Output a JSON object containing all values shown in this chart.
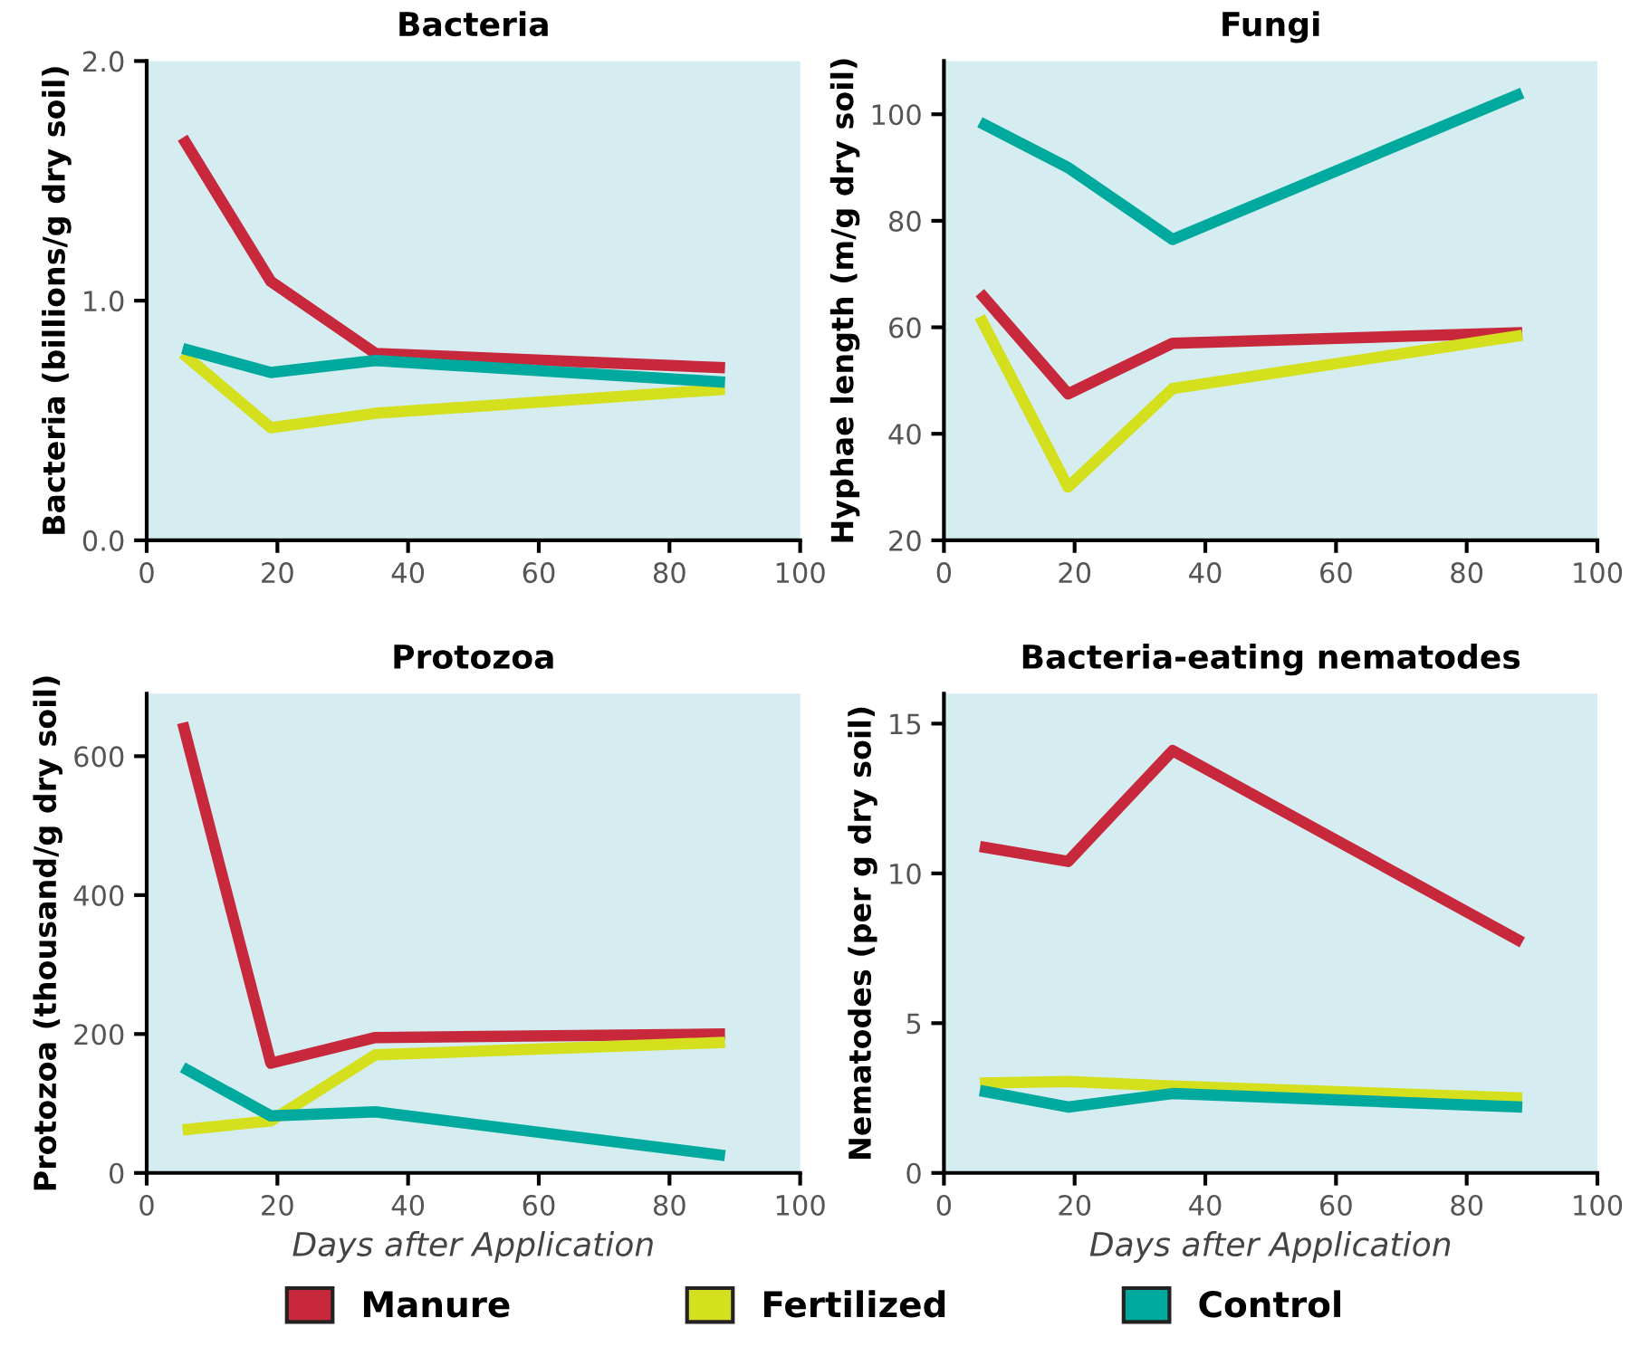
{
  "chart_data": [
    {
      "type": "line",
      "title": "Bacteria",
      "ylabel": "Bacteria (billions/g dry soil)",
      "x": [
        5.5,
        19,
        35,
        88.5
      ],
      "xlim": [
        0,
        100
      ],
      "xticks": [
        0,
        20,
        40,
        60,
        80,
        100
      ],
      "ylim": [
        0,
        2.0
      ],
      "yticks": [
        {
          "value": 0,
          "label": "0.0"
        },
        {
          "value": 1,
          "label": "1.0"
        },
        {
          "value": 2,
          "label": "2.0"
        }
      ],
      "grid": false,
      "marker": "none",
      "line_style": "solid",
      "legend": "bottom",
      "series": [
        {
          "name": "Manure",
          "color": "#c8283c",
          "values": [
            1.68,
            1.08,
            0.78,
            0.72
          ]
        },
        {
          "name": "Fertilized",
          "color": "#d4df1e",
          "values": [
            0.78,
            0.47,
            0.53,
            0.63
          ]
        },
        {
          "name": "Control",
          "color": "#00a99d",
          "values": [
            0.8,
            0.7,
            0.75,
            0.66
          ]
        }
      ]
    },
    {
      "type": "line",
      "title": "Fungi",
      "ylabel": "Hyphae length (m/g dry soil)",
      "x": [
        5.5,
        19,
        35,
        88.5
      ],
      "xlim": [
        0,
        100
      ],
      "xticks": [
        0,
        20,
        40,
        60,
        80,
        100
      ],
      "ylim": [
        20,
        110
      ],
      "yticks": [
        20,
        40,
        60,
        80,
        100
      ],
      "grid": false,
      "marker": "none",
      "line_style": "solid",
      "series": [
        {
          "color": "#c8283c",
          "values": [
            66.5,
            47.5,
            57,
            59
          ]
        },
        {
          "color": "#d4df1e",
          "values": [
            62,
            30,
            48.5,
            58.5
          ]
        },
        {
          "color": "#00a99d",
          "values": [
            98.5,
            90,
            76.5,
            104
          ]
        }
      ]
    },
    {
      "type": "line",
      "title": "Protozoa",
      "ylabel": "Protozoa (thousand/g dry soil)",
      "xlabel": "Days after Application",
      "x": [
        5.5,
        19,
        35,
        88.5
      ],
      "xlim": [
        0,
        100
      ],
      "xticks": [
        0,
        20,
        40,
        60,
        80,
        100
      ],
      "ylim": [
        0,
        690
      ],
      "yticks": [
        0,
        200,
        400,
        600
      ],
      "grid": false,
      "marker": "none",
      "line_style": "solid",
      "series": [
        {
          "color": "#c8283c",
          "values": [
            648,
            158,
            195,
            200
          ]
        },
        {
          "color": "#d4df1e",
          "values": [
            62,
            75,
            170,
            188
          ]
        },
        {
          "color": "#00a99d",
          "values": [
            152,
            82,
            88,
            25
          ]
        }
      ]
    },
    {
      "type": "line",
      "title": "Bacteria-eating nematodes",
      "ylabel": "Nematodes (per g dry soil)",
      "xlabel": "Days after Application",
      "x": [
        5.5,
        19,
        35,
        88.5
      ],
      "xlim": [
        0,
        100
      ],
      "xticks": [
        0,
        20,
        40,
        60,
        80,
        100
      ],
      "ylim": [
        0,
        16
      ],
      "yticks": [
        0,
        5,
        10,
        15
      ],
      "grid": false,
      "marker": "none",
      "line_style": "solid",
      "series": [
        {
          "color": "#c8283c",
          "values": [
            10.9,
            10.4,
            14.1,
            7.7
          ]
        },
        {
          "color": "#d4df1e",
          "values": [
            3.0,
            3.05,
            2.9,
            2.5
          ]
        },
        {
          "color": "#00a99d",
          "values": [
            2.75,
            2.2,
            2.65,
            2.2
          ]
        }
      ]
    }
  ]
}
